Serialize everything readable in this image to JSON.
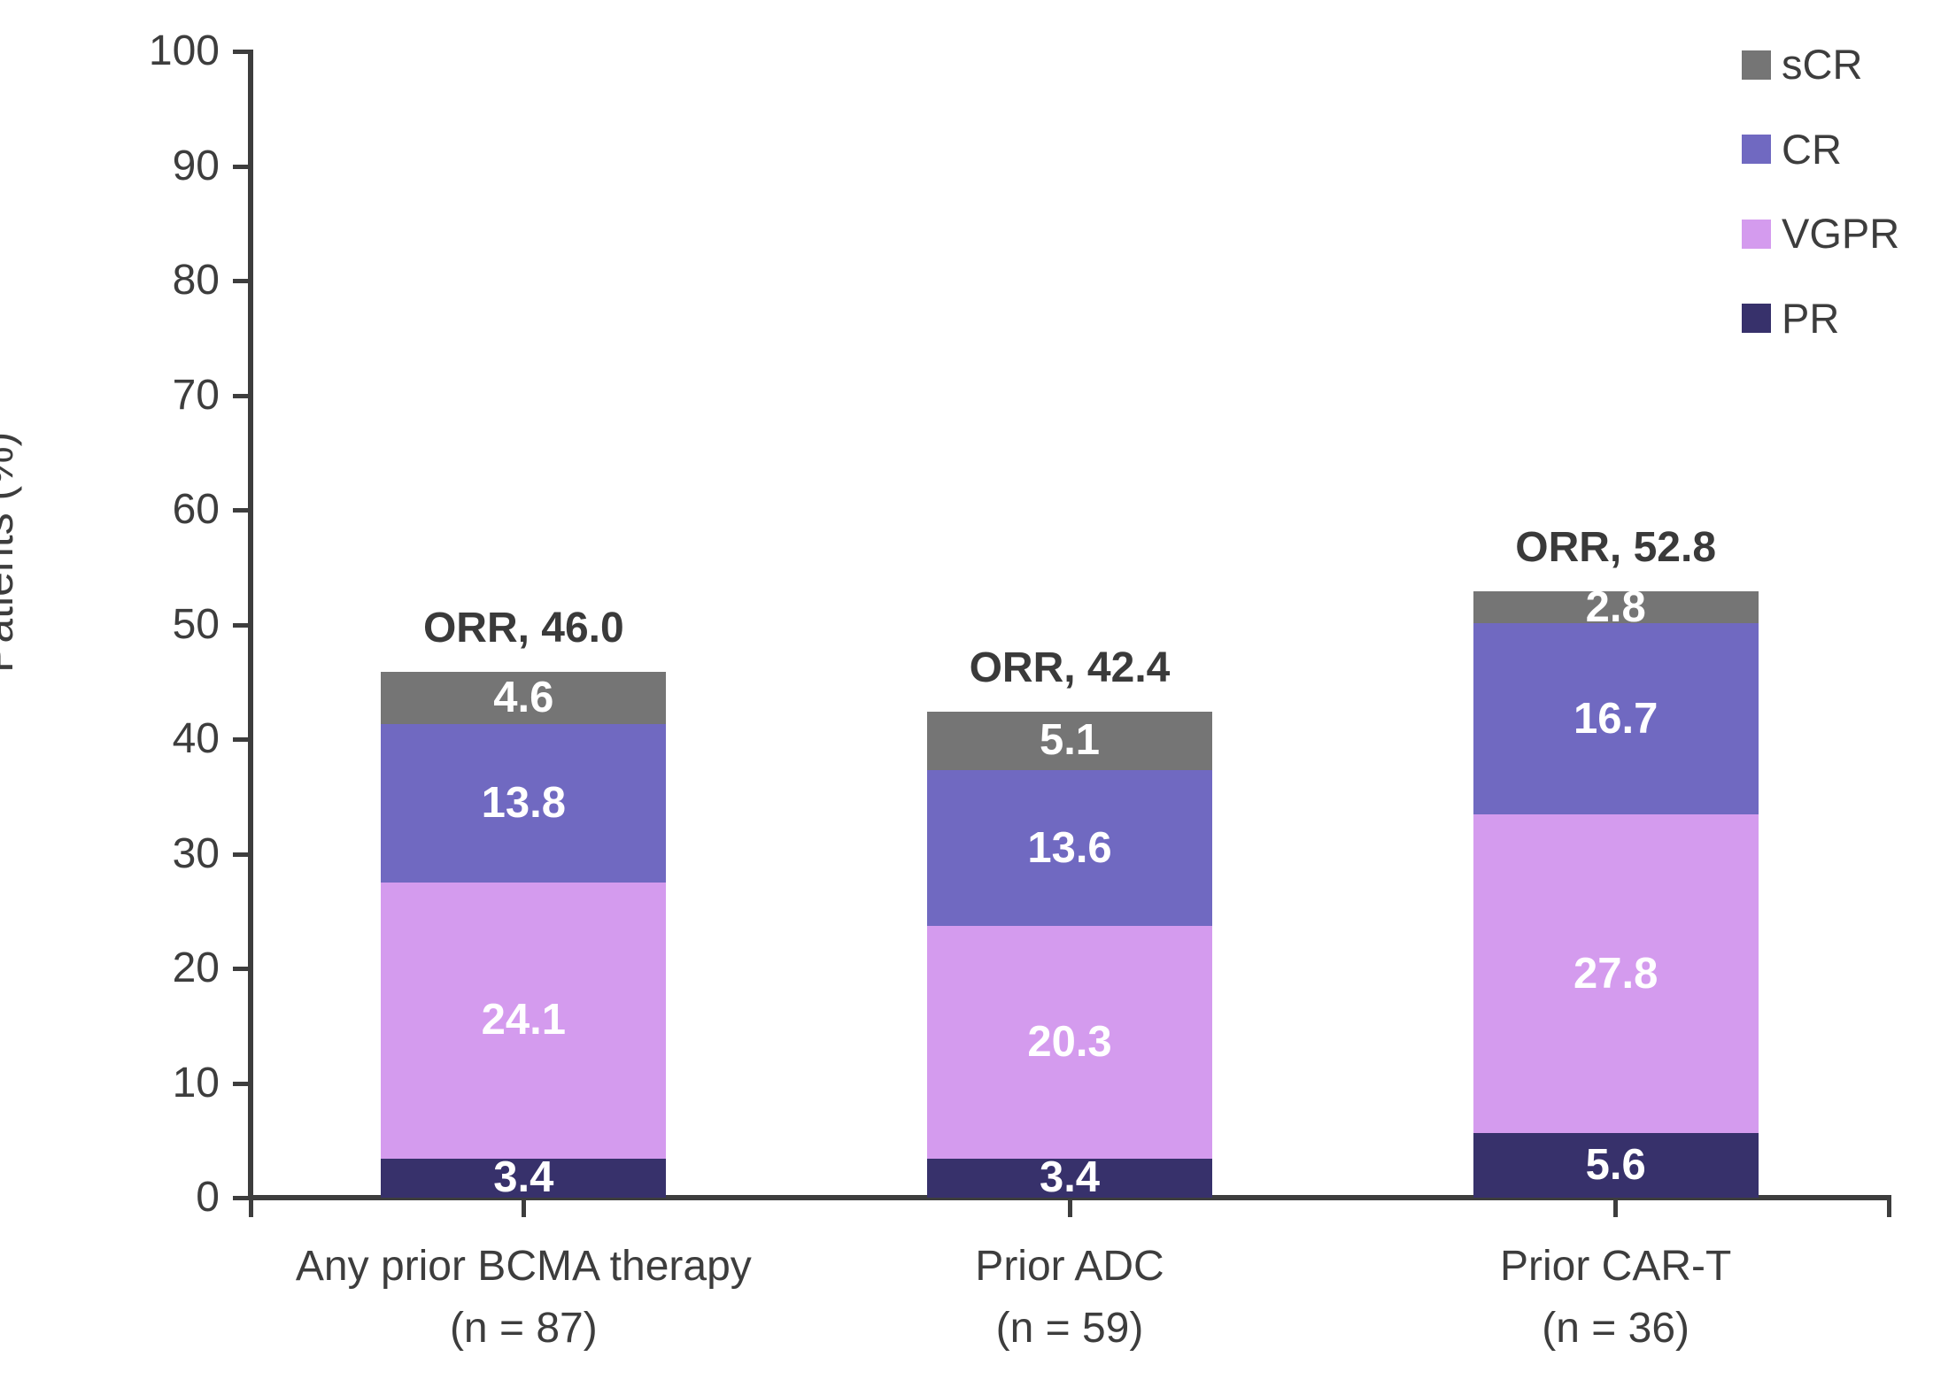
{
  "chart_data": {
    "type": "bar",
    "stacked": true,
    "ylabel": "Patients (%)",
    "ylim": [
      0,
      100
    ],
    "yticks": [
      0,
      10,
      20,
      30,
      40,
      50,
      60,
      70,
      80,
      90,
      100
    ],
    "grid": false,
    "legend_position": "top-right",
    "legend_order": [
      "sCR",
      "CR",
      "VGPR",
      "PR"
    ],
    "categories": [
      {
        "label": "Any prior BCMA therapy",
        "n_label": "(n = 87)",
        "orr_label": "ORR, 46.0",
        "orr_value": 46.0
      },
      {
        "label": "Prior ADC",
        "n_label": "(n = 59)",
        "orr_label": "ORR, 42.4",
        "orr_value": 42.4
      },
      {
        "label": "Prior CAR-T",
        "n_label": "(n = 36)",
        "orr_label": "ORR, 52.8",
        "orr_value": 52.8
      }
    ],
    "series": [
      {
        "name": "PR",
        "color": "#37316b",
        "values": [
          3.4,
          3.4,
          5.6
        ],
        "labels": [
          "3.4",
          "3.4",
          "5.6"
        ]
      },
      {
        "name": "VGPR",
        "color": "#d49bee",
        "values": [
          24.1,
          20.3,
          27.8
        ],
        "labels": [
          "24.1",
          "20.3",
          "27.8"
        ]
      },
      {
        "name": "CR",
        "color": "#7069c1",
        "values": [
          13.8,
          13.6,
          16.7
        ],
        "labels": [
          "13.8",
          "13.6",
          "16.7"
        ]
      },
      {
        "name": "sCR",
        "color": "#757575",
        "values": [
          4.6,
          5.1,
          2.8
        ],
        "labels": [
          "4.6",
          "5.1",
          "2.8"
        ]
      }
    ]
  },
  "colors": {
    "axis": "#3d3d3d",
    "tick_text": "#3d3d3d",
    "category_text": "#3d3d3d",
    "orr_text": "#3a3a3a",
    "bar_value_text": "#ffffff",
    "background": "#ffffff"
  }
}
